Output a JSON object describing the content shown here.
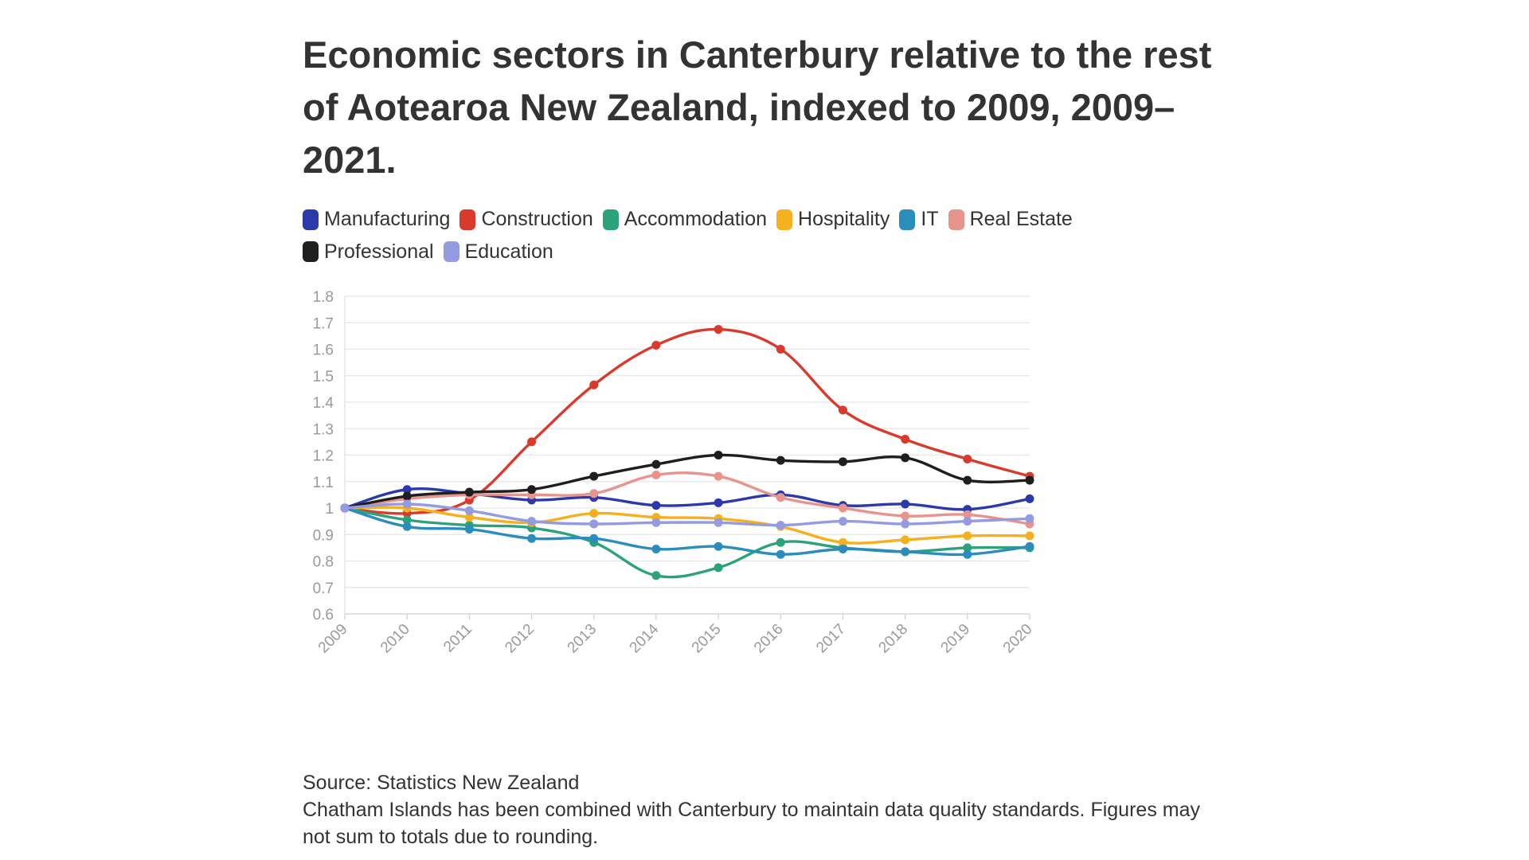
{
  "chart_data": {
    "type": "line",
    "title": "Economic sectors in Canterbury relative to the rest of Aotearoa New Zealand, indexed to 2009, 2009–2021.",
    "xlabel": "",
    "ylabel": "",
    "x": [
      "2009",
      "2010",
      "2011",
      "2012",
      "2013",
      "2014",
      "2015",
      "2016",
      "2017",
      "2018",
      "2019",
      "2020"
    ],
    "yticks": [
      "0.6",
      "0.7",
      "0.8",
      "0.9",
      "1",
      "1.1",
      "1.2",
      "1.3",
      "1.4",
      "1.5",
      "1.6",
      "1.7",
      "1.8"
    ],
    "ylim": [
      0.6,
      1.8
    ],
    "grid": true,
    "legend_position": "top-left",
    "series": [
      {
        "name": "Manufacturing",
        "color": "#2b3aa8",
        "values": [
          1.0,
          1.07,
          1.055,
          1.03,
          1.04,
          1.01,
          1.02,
          1.05,
          1.01,
          1.015,
          0.995,
          1.035
        ]
      },
      {
        "name": "Construction",
        "color": "#d93a2b",
        "values": [
          1.0,
          0.98,
          1.03,
          1.25,
          1.465,
          1.615,
          1.675,
          1.6,
          1.37,
          1.26,
          1.185,
          1.12
        ]
      },
      {
        "name": "Accommodation",
        "color": "#2ba27a",
        "values": [
          1.0,
          0.955,
          0.935,
          0.925,
          0.87,
          0.745,
          0.775,
          0.87,
          0.85,
          0.835,
          0.85,
          0.85
        ]
      },
      {
        "name": "Hospitality",
        "color": "#f5b01f",
        "values": [
          1.0,
          1.0,
          0.965,
          0.945,
          0.98,
          0.965,
          0.96,
          0.93,
          0.87,
          0.88,
          0.895,
          0.895
        ]
      },
      {
        "name": "IT",
        "color": "#2a8dbb",
        "values": [
          1.0,
          0.93,
          0.92,
          0.885,
          0.885,
          0.845,
          0.855,
          0.825,
          0.845,
          0.835,
          0.825,
          0.855
        ]
      },
      {
        "name": "Real Estate",
        "color": "#e8948c",
        "values": [
          1.0,
          1.035,
          1.05,
          1.05,
          1.055,
          1.125,
          1.12,
          1.04,
          1.0,
          0.97,
          0.975,
          0.94
        ]
      },
      {
        "name": "Professional",
        "color": "#1e1e1e",
        "values": [
          1.0,
          1.045,
          1.06,
          1.07,
          1.12,
          1.165,
          1.2,
          1.18,
          1.175,
          1.19,
          1.105,
          1.105
        ]
      },
      {
        "name": "Education",
        "color": "#949be0",
        "values": [
          1.0,
          1.015,
          0.99,
          0.95,
          0.94,
          0.945,
          0.945,
          0.935,
          0.95,
          0.94,
          0.95,
          0.96
        ]
      }
    ]
  },
  "source": {
    "line1": "Source: Statistics New Zealand",
    "line2": "Chatham Islands has been combined with Canterbury to maintain data quality standards. Figures may not sum to totals due to rounding."
  }
}
